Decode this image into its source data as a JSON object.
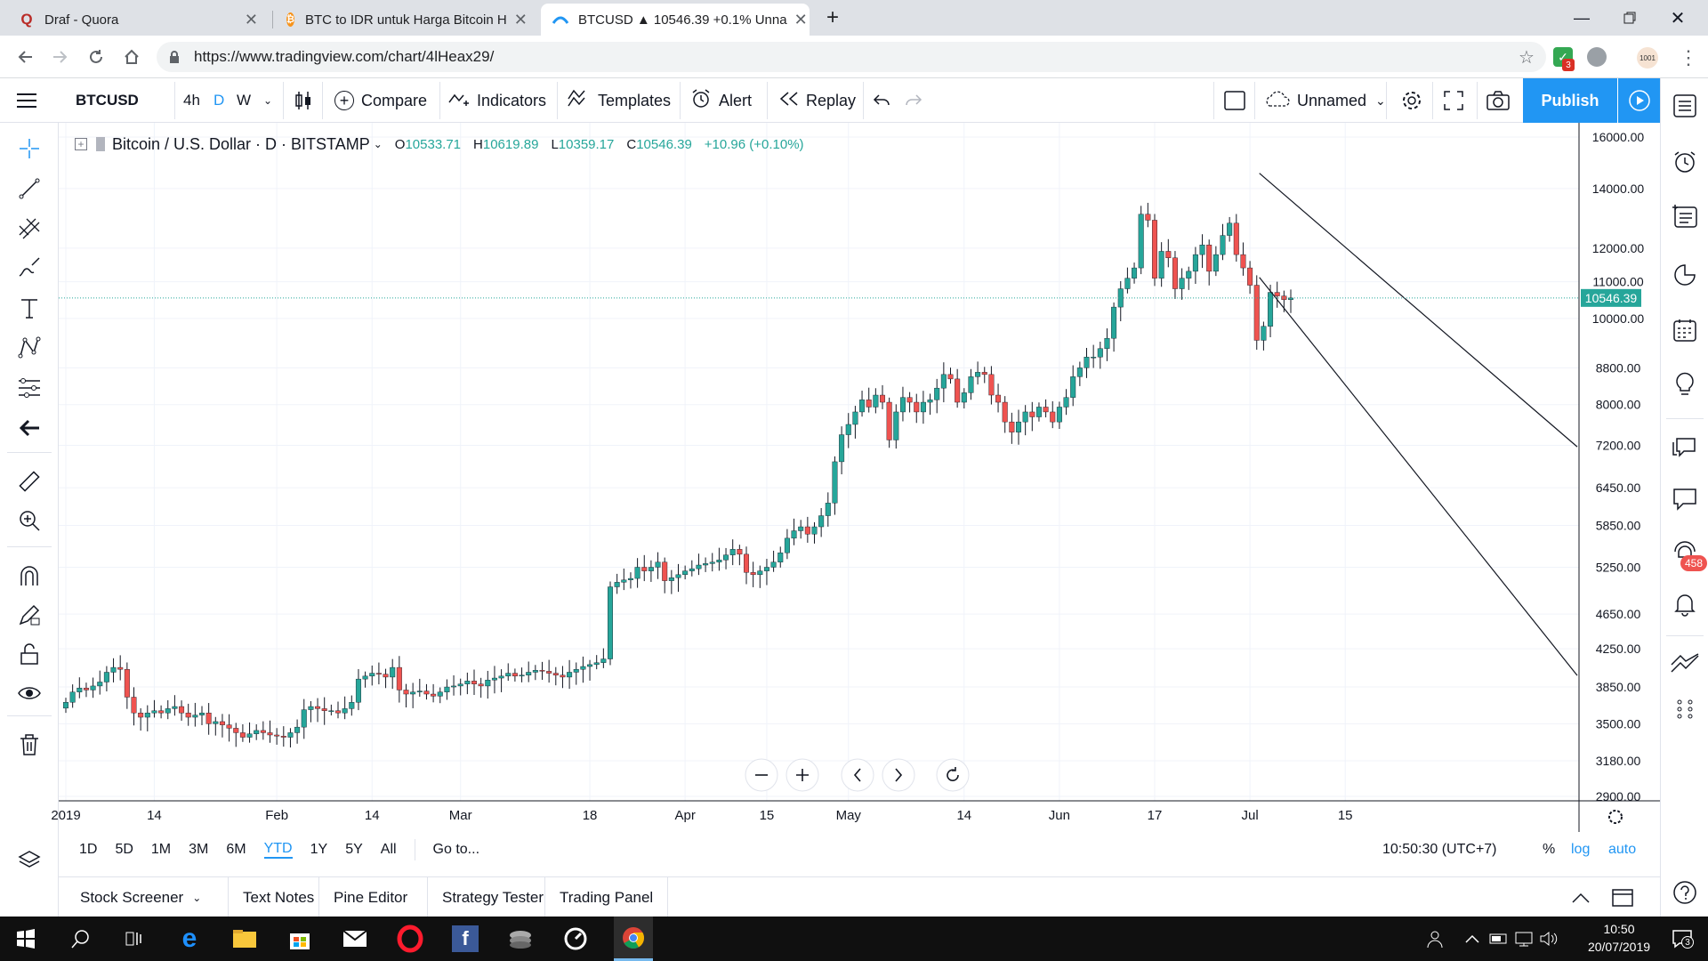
{
  "browser": {
    "tabs": [
      {
        "title": "Draf - Quora",
        "favicon": "quora-icon",
        "color": "#b92b27"
      },
      {
        "title": "BTC to IDR untuk Harga Bitcoin H",
        "favicon": "bitcoin-icon",
        "color": "#f7931a"
      },
      {
        "title": "BTCUSD ▲ 10546.39 +0.1% Unna",
        "favicon": "tradingview-icon",
        "color": "#2196f3"
      }
    ],
    "url": "https://www.tradingview.com/chart/4lHeax29/",
    "extension_badge": "3",
    "avatar_label": "1001"
  },
  "toolbar": {
    "symbol": "BTCUSD",
    "intervals": [
      "4h",
      "D",
      "W"
    ],
    "active_interval": "D",
    "compare": "Compare",
    "indicators": "Indicators",
    "templates": "Templates",
    "alert": "Alert",
    "replay": "Replay",
    "layout_name": "Unnamed",
    "publish": "Publish"
  },
  "legend": {
    "title": "Bitcoin / U.S. Dollar · D · BITSTAMP",
    "open_label": "O",
    "open": "10533.71",
    "high_label": "H",
    "high": "10619.89",
    "low_label": "L",
    "low": "10359.17",
    "close_label": "C",
    "close": "10546.39",
    "change": "+10.96 (+0.10%)"
  },
  "colors": {
    "up": "#26a69a",
    "down": "#ef5350",
    "accent": "#2196f3",
    "price_line": "#26a69a"
  },
  "chart_data": {
    "type": "candlestick",
    "symbol": "BTCUSD",
    "scale": "log",
    "price_axis": [
      "16000.00",
      "14000.00",
      "12000.00",
      "11000.00",
      "10000.00",
      "8800.00",
      "8000.00",
      "7200.00",
      "6450.00",
      "5850.00",
      "5250.00",
      "4650.00",
      "4250.00",
      "3850.00",
      "3500.00",
      "3180.00",
      "2900.00"
    ],
    "time_axis": [
      "2019",
      "14",
      "Feb",
      "14",
      "Mar",
      "18",
      "Apr",
      "15",
      "May",
      "14",
      "Jun",
      "17",
      "Jul",
      "15"
    ],
    "last_price": "10546.39",
    "ylim": [
      2900,
      16500
    ],
    "closes": [
      3700,
      3800,
      3840,
      3820,
      3860,
      3900,
      4000,
      4050,
      4030,
      3750,
      3600,
      3560,
      3600,
      3620,
      3600,
      3640,
      3660,
      3600,
      3560,
      3580,
      3600,
      3500,
      3520,
      3490,
      3460,
      3420,
      3380,
      3410,
      3440,
      3420,
      3400,
      3390,
      3380,
      3420,
      3470,
      3630,
      3660,
      3640,
      3620,
      3620,
      3600,
      3640,
      3700,
      3930,
      3960,
      3990,
      3980,
      3950,
      4050,
      3820,
      3780,
      3800,
      3810,
      3780,
      3760,
      3800,
      3850,
      3860,
      3880,
      3910,
      3880,
      3860,
      3920,
      3940,
      3960,
      3990,
      3960,
      3970,
      4000,
      4020,
      4010,
      3990,
      3970,
      3950,
      4000,
      4030,
      4060,
      4080,
      4100,
      4140,
      4990,
      5050,
      5080,
      5100,
      5250,
      5200,
      5250,
      5320,
      5070,
      5110,
      5150,
      5200,
      5230,
      5280,
      5300,
      5320,
      5350,
      5420,
      5500,
      5430,
      5180,
      5150,
      5200,
      5250,
      5320,
      5450,
      5660,
      5770,
      5830,
      5720,
      5830,
      6000,
      6200,
      6900,
      7400,
      7600,
      7850,
      8100,
      7950,
      8200,
      8050,
      7300,
      7850,
      8150,
      8050,
      7850,
      8050,
      8100,
      8350,
      8650,
      8550,
      8050,
      8250,
      8600,
      8700,
      8650,
      8200,
      8050,
      7650,
      7450,
      7650,
      7850,
      7750,
      7950,
      7850,
      7650,
      7950,
      8150,
      8600,
      8800,
      9050,
      9050,
      9250,
      9500,
      10300,
      10800,
      11100,
      11400,
      13100,
      12900,
      11100,
      11900,
      11700,
      10800,
      11100,
      11300,
      11800,
      12100,
      11300,
      11800,
      12400,
      12800,
      11800,
      11400,
      10900,
      9450,
      9800,
      10700,
      10600,
      10500,
      10546
    ],
    "channel_upper": [
      [
        178,
        14000
      ],
      [
        186,
        12400
      ]
    ],
    "channel_lower": [
      [
        178,
        10500
      ],
      [
        186,
        8800
      ]
    ]
  },
  "chart_controls": {
    "time_label": "10:50:30 (UTC+7)",
    "percent": "%",
    "log": "log",
    "auto": "auto"
  },
  "range_buttons": [
    "1D",
    "5D",
    "1M",
    "3M",
    "6M",
    "YTD",
    "1Y",
    "5Y",
    "All"
  ],
  "active_range": "YTD",
  "goto": "Go to...",
  "bottom_tabs": [
    "Stock Screener",
    "Text Notes",
    "Pine Editor",
    "Strategy Tester",
    "Trading Panel"
  ],
  "right_badge": "458",
  "taskbar": {
    "time": "10:50",
    "date": "20/07/2019",
    "notification_count": "3"
  }
}
